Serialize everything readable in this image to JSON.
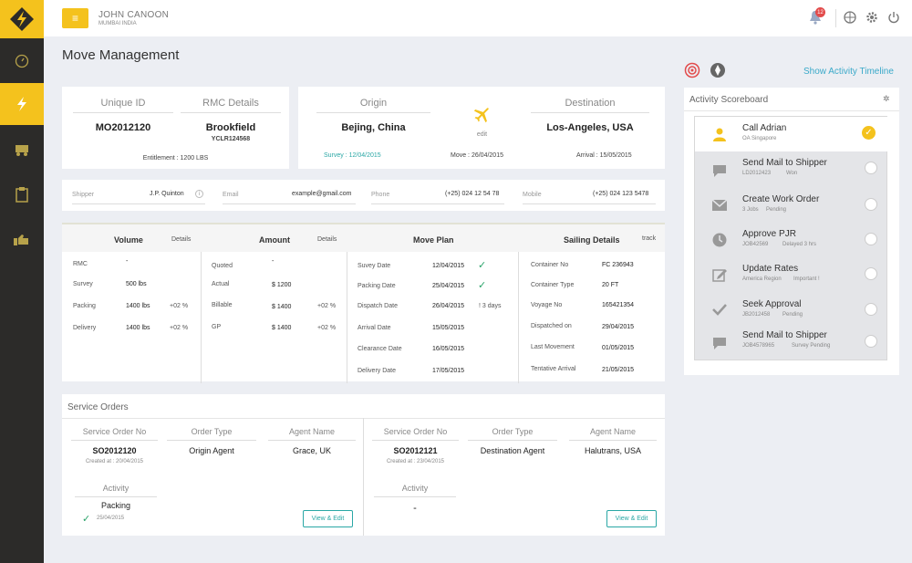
{
  "topbar": {
    "user_name": "JOHN CANOON",
    "user_location": "MUMBAI INDIA",
    "notification_count": "12"
  },
  "page": {
    "title": "Move Management"
  },
  "summary": {
    "unique_id_label": "Unique ID",
    "unique_id": "MO2012120",
    "rmc_label": "RMC Details",
    "rmc_name": "Brookfield",
    "rmc_code": "YCLR124568",
    "entitlement": "Entitlement : 1200 LBS"
  },
  "route": {
    "origin_label": "Origin",
    "origin": "Bejing, China",
    "destination_label": "Destination",
    "destination": "Los-Angeles, USA",
    "edit_label": "edit",
    "survey": "Survey : 12/04/2015",
    "move": "Move : 26/04/2015",
    "arrival": "Arrival : 15/05/2015"
  },
  "contact": {
    "shipper_label": "Shipper",
    "shipper": "J.P. Quinton",
    "email_label": "Email",
    "email": "example@gmail.com",
    "phone_label": "Phone",
    "phone": "(+25) 024 12 54 78",
    "mobile_label": "Mobile",
    "mobile": "(+25) 024 123 5478"
  },
  "volume": {
    "title": "Volume",
    "link": "Details",
    "rows": [
      {
        "label": "RMC",
        "value": "-",
        "delta": ""
      },
      {
        "label": "Survey",
        "value": "500 lbs",
        "delta": ""
      },
      {
        "label": "Packing",
        "value": "1400 lbs",
        "delta": "+02 %"
      },
      {
        "label": "Delivery",
        "value": "1400 lbs",
        "delta": "+02 %"
      }
    ]
  },
  "amount": {
    "title": "Amount",
    "link": "Details",
    "rows": [
      {
        "label": "Quoted",
        "value": "-",
        "delta": ""
      },
      {
        "label": "Actual",
        "value": "$ 1200",
        "delta": ""
      },
      {
        "label": "Billable",
        "value": "$ 1400",
        "delta": "+02 %"
      },
      {
        "label": "GP",
        "value": "$ 1400",
        "delta": "+02 %"
      }
    ]
  },
  "move_plan": {
    "title": "Move Plan",
    "rows": [
      {
        "label": "Suvey Date",
        "value": "12/04/2015",
        "status": "done"
      },
      {
        "label": "Packing Date",
        "value": "25/04/2015",
        "status": "done"
      },
      {
        "label": "Dispatch Date",
        "value": "26/04/2015",
        "status": "! 3 days"
      },
      {
        "label": "Arrival Date",
        "value": "15/05/2015",
        "status": ""
      },
      {
        "label": "Clearance Date",
        "value": "16/05/2015",
        "status": ""
      },
      {
        "label": "Delivery Date",
        "value": "17/05/2015",
        "status": ""
      }
    ]
  },
  "sailing": {
    "title": "Sailing Details",
    "link": "track",
    "rows": [
      {
        "label": "Container No",
        "value": "FC 236943"
      },
      {
        "label": "Container Type",
        "value": "20 FT"
      },
      {
        "label": "Voyage No",
        "value": "165421354"
      },
      {
        "label": "Dispatched on",
        "value": "29/04/2015"
      },
      {
        "label": "Last Movement",
        "value": "01/05/2015"
      },
      {
        "label": "Tentative Arrival",
        "value": "21/05/2015"
      }
    ]
  },
  "service_orders": {
    "title": "Service Orders",
    "col_no": "Service Order No",
    "col_type": "Order Type",
    "col_agent": "Agent Name",
    "col_activity": "Activity",
    "view_edit": "View & Edit",
    "orders": [
      {
        "no": "SO2012120",
        "created": "Created at : 20/04/2015",
        "type": "Origin Agent",
        "agent": "Grace, UK",
        "activity": "Packing",
        "activity_date": "25/04/2015"
      },
      {
        "no": "SO2012121",
        "created": "Created at : 23/04/2015",
        "type": "Destination Agent",
        "agent": "Halutrans, USA",
        "activity": "-",
        "activity_date": ""
      }
    ]
  },
  "activity": {
    "timeline_link": "Show Activity Timeline",
    "scoreboard_title": "Activity Scoreboard",
    "items": [
      {
        "title": "Call Adrian",
        "sub": "OA Singapore",
        "tag": "",
        "icon": "user-icon"
      },
      {
        "title": "Send Mail to Shipper",
        "sub": "LD2012423",
        "tag": "Won",
        "icon": "chat-icon"
      },
      {
        "title": "Create Work Order",
        "sub": "3 Jobs",
        "tag": "Pending",
        "icon": "mail-icon"
      },
      {
        "title": "Approve PJR",
        "sub": "JOB42569",
        "tag": "Delayed 3 hrs",
        "icon": "clock-icon"
      },
      {
        "title": "Update Rates",
        "sub": "America Region",
        "tag": "Important !",
        "icon": "edit-icon"
      },
      {
        "title": "Seek Approval",
        "sub": "JB2012458",
        "tag": "Pending",
        "icon": "check-icon"
      },
      {
        "title": "Send Mail to Shipper",
        "sub": "JOB4578965",
        "tag": "Survey Pending",
        "icon": "chat-icon"
      }
    ]
  },
  "colors": {
    "accent": "#f4c21d",
    "sidebar": "#2c2b29",
    "teal": "#2aa7a5",
    "red": "#e24b4b",
    "orange": "#f0a30a"
  }
}
